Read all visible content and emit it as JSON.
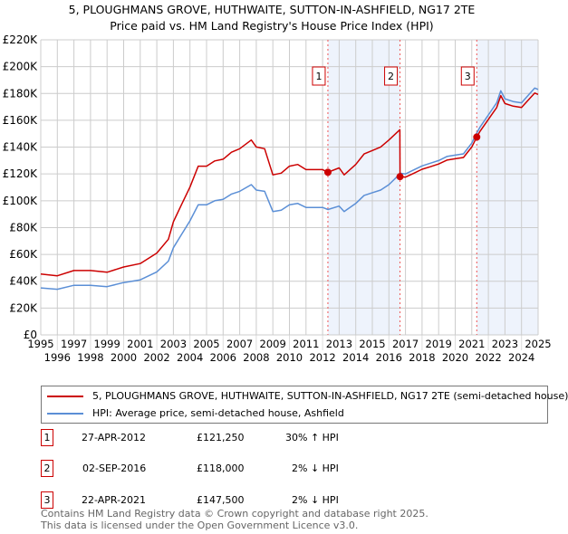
{
  "title": "5, PLOUGHMANS GROVE, HUTHWAITE, SUTTON-IN-ASHFIELD, NG17 2TE",
  "subtitle": "Price paid vs. HM Land Registry's House Price Index (HPI)",
  "chart_data": {
    "type": "line",
    "title": "5, PLOUGHMANS GROVE, HUTHWAITE, SUTTON-IN-ASHFIELD, NG17 2TE",
    "subtitle": "Price paid vs. HM Land Registry's House Price Index (HPI)",
    "xlim": [
      1995,
      2025
    ],
    "ylim": [
      0,
      220000
    ],
    "grid": true,
    "x_ticks": [
      "1995",
      "1996",
      "1997",
      "1998",
      "1999",
      "2000",
      "2001",
      "2002",
      "2003",
      "2004",
      "2005",
      "2006",
      "2007",
      "2008",
      "2009",
      "2010",
      "2011",
      "2012",
      "2013",
      "2014",
      "2015",
      "2016",
      "2017",
      "2018",
      "2019",
      "2020",
      "2021",
      "2022",
      "2023",
      "2024",
      "2025"
    ],
    "y_ticks": [
      {
        "value": 0,
        "label": "£0"
      },
      {
        "value": 20000,
        "label": "£20K"
      },
      {
        "value": 40000,
        "label": "£40K"
      },
      {
        "value": 60000,
        "label": "£60K"
      },
      {
        "value": 80000,
        "label": "£80K"
      },
      {
        "value": 100000,
        "label": "£100K"
      },
      {
        "value": 120000,
        "label": "£120K"
      },
      {
        "value": 140000,
        "label": "£140K"
      },
      {
        "value": 160000,
        "label": "£160K"
      },
      {
        "value": 180000,
        "label": "£180K"
      },
      {
        "value": 200000,
        "label": "£200K"
      },
      {
        "value": 220000,
        "label": "£220K"
      }
    ],
    "x": [
      1995,
      1996,
      1997,
      1998,
      1999,
      2000,
      2001,
      2002,
      2002.7,
      2003,
      2003.5,
      2004,
      2004.5,
      2005,
      2005.5,
      2006,
      2006.5,
      2007,
      2007.7,
      2008,
      2008.5,
      2009,
      2009.5,
      2010,
      2010.5,
      2011,
      2011.5,
      2012,
      2012.32,
      2013,
      2013.3,
      2014,
      2014.5,
      2015,
      2015.5,
      2016,
      2016.66,
      2016.67,
      2017,
      2017.5,
      2018,
      2018.5,
      2019,
      2019.5,
      2020,
      2020.5,
      2021,
      2021.3,
      2021.5,
      2022,
      2022.5,
      2022.75,
      2023,
      2023.5,
      2024,
      2024.5,
      2024.8,
      2025
    ],
    "series": [
      {
        "name": "5, PLOUGHMANS GROVE, HUTHWAITE, SUTTON-IN-ASHFIELD, NG17 2TE (semi-detached house)",
        "color": "#cc0000",
        "values": [
          45400,
          44100,
          48000,
          48000,
          46700,
          50600,
          53200,
          61000,
          71300,
          84300,
          97300,
          110200,
          125800,
          125800,
          129700,
          131000,
          136200,
          138800,
          145300,
          140100,
          138800,
          119300,
          120600,
          125800,
          127100,
          123200,
          123200,
          123200,
          121250,
          124500,
          119300,
          127100,
          134900,
          137500,
          140100,
          145300,
          153000,
          118000,
          117600,
          120500,
          123500,
          125400,
          127400,
          130300,
          131300,
          132300,
          140100,
          147500,
          151900,
          160700,
          169500,
          178400,
          172500,
          170500,
          169500,
          176400,
          180300,
          179300
        ]
      },
      {
        "name": "HPI: Average price, semi-detached house, Ashfield",
        "color": "#5b8fd6",
        "values": [
          35000,
          34000,
          37000,
          37000,
          36000,
          39000,
          41000,
          47000,
          55000,
          65000,
          75000,
          85000,
          97000,
          97000,
          100000,
          101000,
          105000,
          107000,
          112000,
          108000,
          107000,
          92000,
          93000,
          97000,
          98000,
          95000,
          95000,
          95000,
          93500,
          96000,
          92000,
          98000,
          104000,
          106000,
          108000,
          112000,
          120000,
          120500,
          120000,
          123000,
          126000,
          128000,
          130000,
          133000,
          134000,
          135000,
          143000,
          150500,
          155000,
          164000,
          173000,
          182000,
          176000,
          174000,
          173000,
          180000,
          184000,
          183000
        ]
      }
    ],
    "sales": [
      {
        "id": "1",
        "x": 2012.32,
        "value": 121250
      },
      {
        "id": "2",
        "x": 2016.67,
        "value": 118000
      },
      {
        "id": "3",
        "x": 2021.3,
        "value": 147500
      }
    ],
    "shaded_ranges": [
      [
        2012.32,
        2016.67
      ],
      [
        2021.3,
        2025
      ]
    ],
    "legend_position": "bottom"
  },
  "legend": [
    {
      "label": "5, PLOUGHMANS GROVE, HUTHWAITE, SUTTON-IN-ASHFIELD, NG17 2TE (semi-detached house)",
      "color": "#cc0000"
    },
    {
      "label": "HPI: Average price, semi-detached house, Ashfield",
      "color": "#5b8fd6"
    }
  ],
  "transactions": [
    {
      "id": "1",
      "date": "27-APR-2012",
      "price": "£121,250",
      "hpi": "30% ↑ HPI"
    },
    {
      "id": "2",
      "date": "02-SEP-2016",
      "price": "£118,000",
      "hpi": "2% ↓ HPI"
    },
    {
      "id": "3",
      "date": "22-APR-2021",
      "price": "£147,500",
      "hpi": "2% ↓ HPI"
    }
  ],
  "footer": {
    "line1": "Contains HM Land Registry data © Crown copyright and database right 2025.",
    "line2": "This data is licensed under the Open Government Licence v3.0."
  }
}
